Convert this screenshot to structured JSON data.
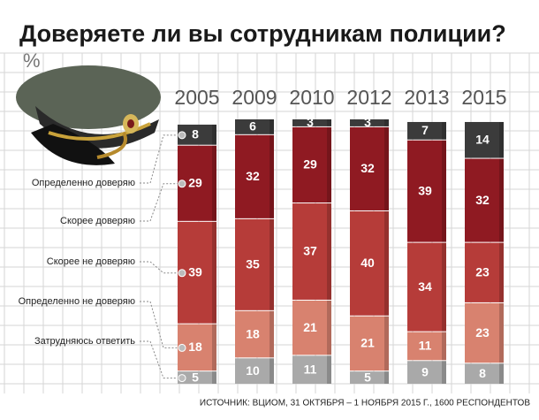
{
  "chart_data": {
    "type": "stacked_bar",
    "title": "Доверяете ли вы сотрудникам полиции?",
    "subtitle": "%",
    "source": "ИСТОЧНИК: ВЦИОМ, 31 ОКТЯБРЯ – 1 НОЯБРЯ 2015 Г., 1600 РЕСПОНДЕНТОВ",
    "categories": [
      "2005",
      "2009",
      "2010",
      "2012",
      "2013",
      "2015"
    ],
    "series": [
      {
        "name": "Определенно доверяю",
        "color": "#3b3b3b",
        "values": [
          8,
          6,
          3,
          3,
          7,
          14
        ]
      },
      {
        "name": "Скорее доверяю",
        "color": "#8f1a22",
        "values": [
          29,
          32,
          29,
          32,
          39,
          32
        ]
      },
      {
        "name": "Скорее не доверяю",
        "color": "#b63c39",
        "values": [
          39,
          35,
          37,
          40,
          34,
          23
        ]
      },
      {
        "name": "Определенно не доверяю",
        "color": "#d8826f",
        "values": [
          18,
          18,
          21,
          21,
          11,
          23
        ]
      },
      {
        "name": "Затрудняюсь ответить",
        "color": "#a9a9a9",
        "values": [
          5,
          10,
          11,
          5,
          9,
          8
        ]
      }
    ]
  }
}
